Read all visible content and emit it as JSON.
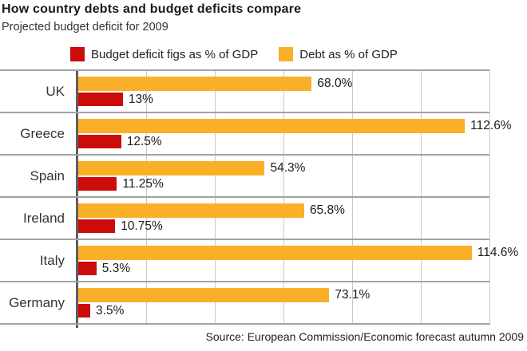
{
  "chart_data": {
    "type": "bar",
    "orientation": "horizontal",
    "title": "How country debts and budget deficits compare",
    "subtitle": "Projected budget deficit for 2009",
    "source": "Source: European Commission/Economic forecast autumn 2009",
    "categories": [
      "UK",
      "Greece",
      "Spain",
      "Ireland",
      "Italy",
      "Germany"
    ],
    "series": [
      {
        "name": "Budget deficit figs as % of GDP",
        "color": "#cc0b0b",
        "values": [
          13,
          12.5,
          11.25,
          10.75,
          5.3,
          3.5
        ],
        "labels": [
          "13%",
          "12.5%",
          "11.25%",
          "10.75%",
          "5.3%",
          "3.5%"
        ]
      },
      {
        "name": "Debt as % of GDP",
        "color": "#faaf29",
        "values": [
          68.0,
          112.6,
          54.3,
          65.8,
          114.6,
          73.1
        ],
        "labels": [
          "68.0%",
          "112.6%",
          "54.3%",
          "65.8%",
          "114.6%",
          "73.1%"
        ]
      }
    ],
    "xlim": [
      0,
      130
    ],
    "ticks": [
      20,
      40,
      60,
      80,
      100,
      120
    ],
    "grid": true,
    "legend_position": "top",
    "value_labels_shown": true,
    "tick_labels_shown": false
  }
}
